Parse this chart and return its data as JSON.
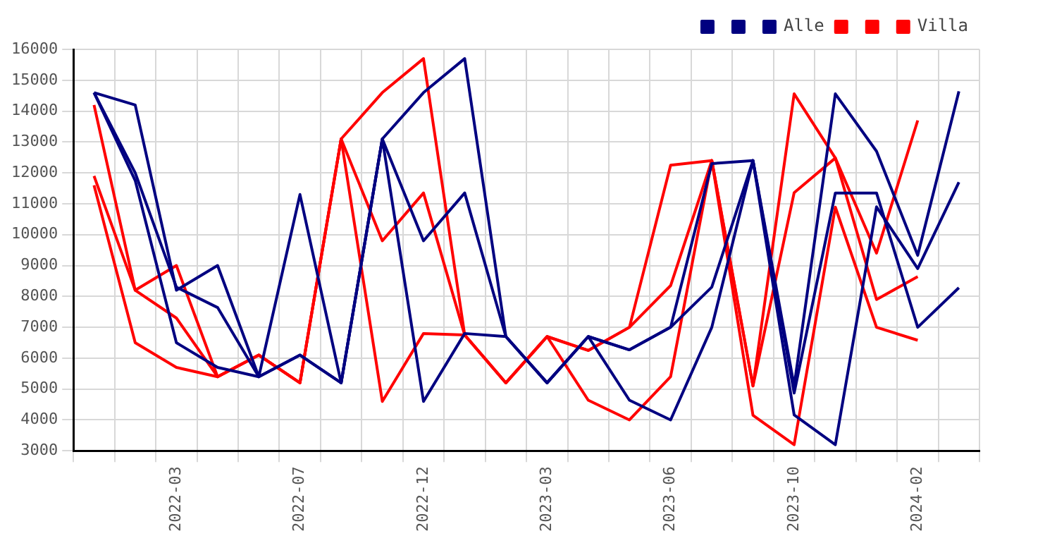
{
  "chart_data": {
    "type": "line",
    "categories": [
      null,
      null,
      "2022-03",
      null,
      null,
      "2022-07",
      null,
      null,
      "2022-12",
      null,
      null,
      "2023-03",
      null,
      null,
      "2023-06",
      null,
      null,
      "2023-10",
      null,
      null,
      "2024-02",
      null
    ],
    "series": [
      {
        "color": "#000080",
        "values": [
          14600,
          14200,
          8200,
          9000,
          5400,
          11300,
          5200,
          13100,
          14600,
          15700,
          6700,
          5200,
          6700,
          6270,
          7000,
          8300,
          12400,
          5100,
          14560,
          12700,
          9330,
          14640
        ]
      },
      {
        "color": "#000080",
        "values": [
          14600,
          12000,
          8300,
          7640,
          5400,
          6100,
          5200,
          13100,
          9800,
          11350,
          6700,
          5200,
          6700,
          4640,
          4000,
          7000,
          12400,
          4870,
          11350,
          11350,
          7000,
          8280
        ]
      },
      {
        "name": "Alle",
        "color": "#000080",
        "values": [
          14600,
          11750,
          6500,
          5700,
          5400,
          6100,
          5200,
          13100,
          4600,
          6800,
          6700,
          5200,
          6700,
          6270,
          7000,
          12300,
          12400,
          4160,
          3200,
          10900,
          8900,
          11700
        ]
      },
      {
        "color": "#ff0000",
        "values": [
          14200,
          8200,
          9000,
          5400,
          6100,
          5200,
          13100,
          14600,
          15700,
          6750,
          5200,
          6700,
          6250,
          7000,
          8350,
          12400,
          5100,
          14560,
          12480,
          9400,
          13700,
          null
        ]
      },
      {
        "color": "#ff0000",
        "values": [
          11900,
          8200,
          7300,
          5400,
          6100,
          5200,
          13100,
          9800,
          11350,
          6750,
          5200,
          6700,
          4640,
          4000,
          5400,
          12400,
          4150,
          3200,
          10890,
          7000,
          6580,
          null
        ]
      },
      {
        "name": "Villa",
        "color": "#ff0000",
        "values": [
          11600,
          6500,
          5700,
          5400,
          6100,
          5200,
          13100,
          4600,
          6800,
          6750,
          5200,
          6700,
          6250,
          7000,
          12250,
          12400,
          5100,
          11360,
          12480,
          7900,
          8640,
          null
        ]
      }
    ],
    "ylim": [
      3000,
      16000
    ],
    "yticks": [
      3000,
      4000,
      5000,
      6000,
      7000,
      8000,
      9000,
      10000,
      11000,
      12000,
      13000,
      14000,
      15000,
      16000
    ],
    "grid": true,
    "legend": "top right",
    "marker": "none",
    "line_style": "solid"
  }
}
